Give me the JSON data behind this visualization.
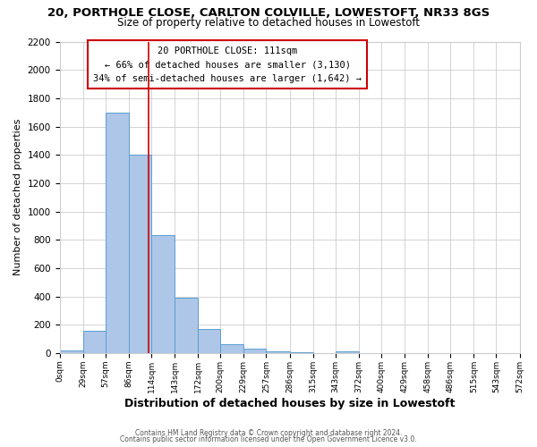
{
  "title1": "20, PORTHOLE CLOSE, CARLTON COLVILLE, LOWESTOFT, NR33 8GS",
  "title2": "Size of property relative to detached houses in Lowestoft",
  "xlabel": "Distribution of detached houses by size in Lowestoft",
  "ylabel": "Number of detached properties",
  "bar_edges": [
    0,
    29,
    57,
    86,
    114,
    143,
    172,
    200,
    229,
    257,
    286,
    315,
    343,
    372,
    400,
    429,
    458,
    486,
    515,
    543,
    572
  ],
  "bar_heights": [
    20,
    160,
    1700,
    1400,
    830,
    390,
    170,
    65,
    30,
    12,
    5,
    0,
    12,
    0,
    0,
    0,
    0,
    0,
    0,
    0
  ],
  "bar_color": "#aec6e8",
  "bar_edge_color": "#5a9fd4",
  "bar_edge_width": 0.7,
  "vline_x": 111,
  "vline_color": "#cc0000",
  "ylim": [
    0,
    2200
  ],
  "yticks": [
    0,
    200,
    400,
    600,
    800,
    1000,
    1200,
    1400,
    1600,
    1800,
    2000,
    2200
  ],
  "tick_labels": [
    "0sqm",
    "29sqm",
    "57sqm",
    "86sqm",
    "114sqm",
    "143sqm",
    "172sqm",
    "200sqm",
    "229sqm",
    "257sqm",
    "286sqm",
    "315sqm",
    "343sqm",
    "372sqm",
    "400sqm",
    "429sqm",
    "458sqm",
    "486sqm",
    "515sqm",
    "543sqm",
    "572sqm"
  ],
  "ann_line1": "20 PORTHOLE CLOSE: 111sqm",
  "ann_line2": "← 66% of detached houses are smaller (3,130)",
  "ann_line3": "34% of semi-detached houses are larger (1,642) →",
  "footer1": "Contains HM Land Registry data © Crown copyright and database right 2024.",
  "footer2": "Contains public sector information licensed under the Open Government Licence v3.0.",
  "grid_color": "#cccccc",
  "background_color": "#ffffff",
  "title1_fontsize": 9.5,
  "title2_fontsize": 8.5,
  "xlabel_fontsize": 9,
  "ylabel_fontsize": 8
}
